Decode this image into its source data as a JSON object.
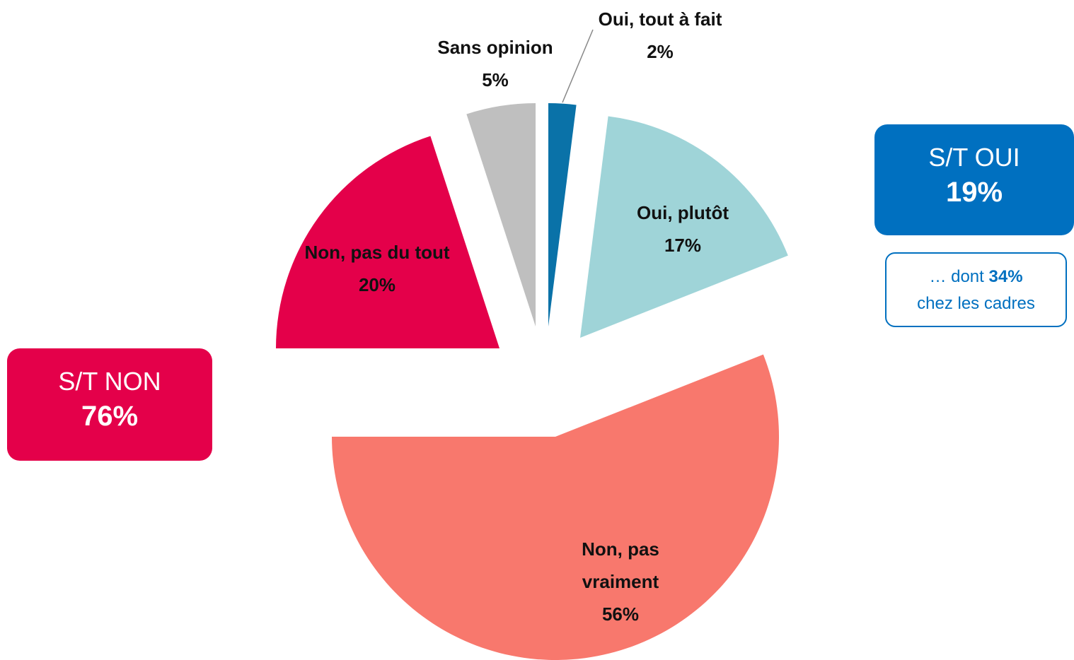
{
  "chart_data": {
    "type": "pie",
    "categories": [
      "Oui, tout à fait",
      "Oui, plutôt",
      "Non, pas vraiment",
      "Non, pas du tout",
      "Sans opinion"
    ],
    "values": [
      2,
      17,
      56,
      20,
      5
    ],
    "value_labels": [
      "2%",
      "17%",
      "56%",
      "20%",
      "5%"
    ],
    "colors": [
      "#0a72a8",
      "#9fd4d8",
      "#f8786d",
      "#e4004a",
      "#bfbfbf"
    ],
    "annotations": [
      {
        "label": "S/T OUI",
        "value_label": "19%"
      },
      {
        "label": "S/T NON",
        "value_label": "76%"
      },
      {
        "prefix": "… dont",
        "value_label": "34%",
        "suffix": "chez les cadres"
      }
    ]
  }
}
